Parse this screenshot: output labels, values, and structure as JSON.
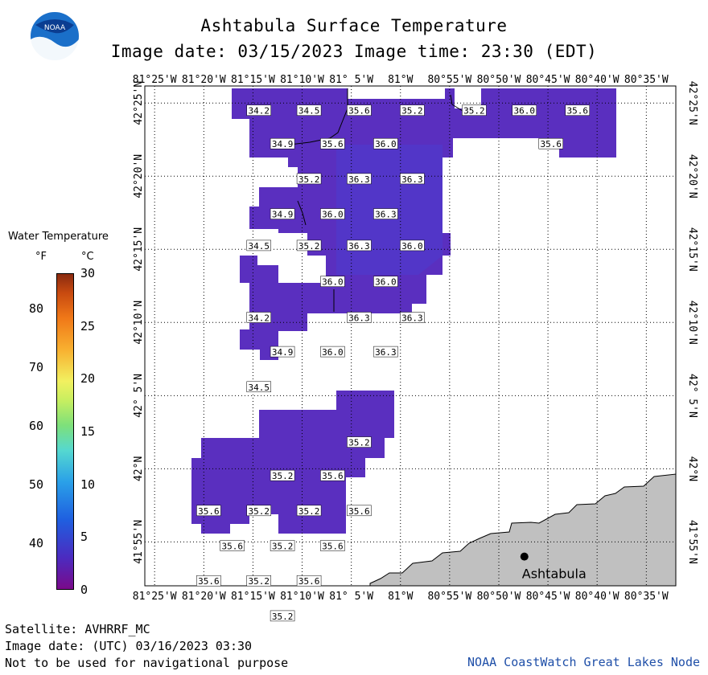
{
  "title": "Ashtabula Surface Temperature",
  "subtitle": "Image date: 03/15/2023   Image time: 23:30 (EDT)",
  "logo_text": "NOAA",
  "legend": {
    "title": "Water Temperature",
    "unit_f": "°F",
    "unit_c": "°C",
    "fahrenheit_ticks": [
      "80",
      "70",
      "60",
      "50",
      "40"
    ],
    "fahrenheit_values": [
      80,
      70,
      60,
      50,
      40
    ],
    "celsius_ticks": [
      "30",
      "25",
      "20",
      "15",
      "10",
      "5",
      "0"
    ],
    "celsius_values": [
      30,
      25,
      20,
      15,
      10,
      5,
      0
    ]
  },
  "map": {
    "lon_labels": [
      "81°25'W",
      "81°20'W",
      "81°15'W",
      "81°10'W",
      "81° 5'W",
      "81°W",
      "80°55'W",
      "80°50'W",
      "80°45'W",
      "80°40'W",
      "80°35'W"
    ],
    "lon_values": [
      -81.4167,
      -81.3333,
      -81.25,
      -81.1667,
      -81.0833,
      -81.0,
      -80.9167,
      -80.8333,
      -80.75,
      -80.6667,
      -80.5833
    ],
    "lat_labels": [
      "42°25'N",
      "42°20'N",
      "42°15'N",
      "42°10'N",
      "42° 5'N",
      "42°N",
      "41°55'N"
    ],
    "lat_values": [
      42.4167,
      42.3333,
      42.25,
      42.1667,
      42.0833,
      42.0,
      41.9167
    ],
    "lon_range": [
      -81.4333,
      -80.5333
    ],
    "lat_range": [
      41.8667,
      42.4361
    ],
    "land_color": "#c0c0c0",
    "water_color": "#5a2fbf",
    "city": {
      "name": "Ashtabula",
      "lon": -80.79,
      "lat": 41.9
    },
    "temperature_labels": [
      {
        "v": "34.2",
        "lon": -81.24,
        "lat": 42.408
      },
      {
        "v": "34.5",
        "lon": -81.155,
        "lat": 42.408
      },
      {
        "v": "35.6",
        "lon": -81.07,
        "lat": 42.408
      },
      {
        "v": "35.2",
        "lon": -80.98,
        "lat": 42.408
      },
      {
        "v": "35.2",
        "lon": -80.875,
        "lat": 42.408
      },
      {
        "v": "36.0",
        "lon": -80.79,
        "lat": 42.408
      },
      {
        "v": "35.6",
        "lon": -80.7,
        "lat": 42.408
      },
      {
        "v": "34.9",
        "lon": -81.2,
        "lat": 42.37
      },
      {
        "v": "35.6",
        "lon": -81.115,
        "lat": 42.37
      },
      {
        "v": "36.0",
        "lon": -81.025,
        "lat": 42.37
      },
      {
        "v": "35.6",
        "lon": -80.745,
        "lat": 42.37
      },
      {
        "v": "35.2",
        "lon": -81.155,
        "lat": 42.33
      },
      {
        "v": "36.3",
        "lon": -81.07,
        "lat": 42.33
      },
      {
        "v": "36.3",
        "lon": -80.98,
        "lat": 42.33
      },
      {
        "v": "34.9",
        "lon": -81.2,
        "lat": 42.29
      },
      {
        "v": "36.0",
        "lon": -81.115,
        "lat": 42.29
      },
      {
        "v": "36.3",
        "lon": -81.025,
        "lat": 42.29
      },
      {
        "v": "34.5",
        "lon": -81.24,
        "lat": 42.254
      },
      {
        "v": "35.2",
        "lon": -81.155,
        "lat": 42.254
      },
      {
        "v": "36.3",
        "lon": -81.07,
        "lat": 42.254
      },
      {
        "v": "36.0",
        "lon": -80.98,
        "lat": 42.254
      },
      {
        "v": "36.0",
        "lon": -81.115,
        "lat": 42.213
      },
      {
        "v": "36.0",
        "lon": -81.025,
        "lat": 42.213
      },
      {
        "v": "34.2",
        "lon": -81.24,
        "lat": 42.172
      },
      {
        "v": "36.3",
        "lon": -81.07,
        "lat": 42.172
      },
      {
        "v": "36.3",
        "lon": -80.98,
        "lat": 42.172
      },
      {
        "v": "34.9",
        "lon": -81.2,
        "lat": 42.133
      },
      {
        "v": "36.0",
        "lon": -81.115,
        "lat": 42.133
      },
      {
        "v": "36.3",
        "lon": -81.025,
        "lat": 42.133
      },
      {
        "v": "34.5",
        "lon": -81.24,
        "lat": 42.093
      },
      {
        "v": "35.2",
        "lon": -81.07,
        "lat": 42.03
      },
      {
        "v": "35.2",
        "lon": -81.2,
        "lat": 41.992
      },
      {
        "v": "35.6",
        "lon": -81.115,
        "lat": 41.992
      },
      {
        "v": "35.6",
        "lon": -81.325,
        "lat": 41.952
      },
      {
        "v": "35.2",
        "lon": -81.24,
        "lat": 41.952
      },
      {
        "v": "35.2",
        "lon": -81.155,
        "lat": 41.952
      },
      {
        "v": "35.6",
        "lon": -81.07,
        "lat": 41.952
      },
      {
        "v": "35.6",
        "lon": -81.285,
        "lat": 41.912
      },
      {
        "v": "35.2",
        "lon": -81.2,
        "lat": 41.912
      },
      {
        "v": "35.6",
        "lon": -81.115,
        "lat": 41.912
      },
      {
        "v": "35.6",
        "lon": -81.325,
        "lat": 41.872
      },
      {
        "v": "35.2",
        "lon": -81.24,
        "lat": 41.872
      },
      {
        "v": "35.6",
        "lon": -81.155,
        "lat": 41.872
      },
      {
        "v": "35.2",
        "lon": -81.2,
        "lat": 41.832
      }
    ]
  },
  "footer": {
    "satellite": "Satellite: AVHRRF_MC",
    "utc_date": "Image date: (UTC) 03/16/2023  03:30",
    "disclaimer": "Not to be used for navigational purpose",
    "credit": "NOAA CoastWatch Great Lakes Node"
  }
}
